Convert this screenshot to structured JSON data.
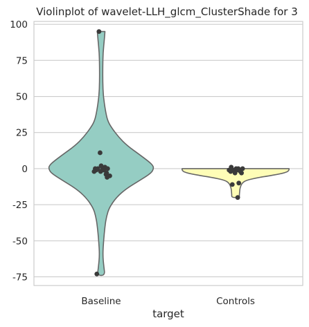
{
  "chart_data": {
    "type": "violin",
    "title": "Violinplot of wavelet-LLH_glcm_ClusterShade for 3",
    "xlabel": "target",
    "ylabel": "",
    "categories": [
      "Baseline",
      "Controls"
    ],
    "ylim": [
      -81,
      102
    ],
    "yticks": [
      100,
      75,
      50,
      25,
      0,
      -25,
      -50,
      -75
    ],
    "grid": "horizontal",
    "colors": {
      "Baseline": "#95cdc3",
      "Controls": "#fefdb7",
      "outline": "#666666",
      "points": "#3a3a3a",
      "grid": "#cccccc"
    },
    "series": [
      {
        "category": "Baseline",
        "violin_profile": [
          [
            95,
            0.07
          ],
          [
            90,
            0.06
          ],
          [
            80,
            0.035
          ],
          [
            70,
            0.03
          ],
          [
            60,
            0.03
          ],
          [
            50,
            0.04
          ],
          [
            40,
            0.08
          ],
          [
            33,
            0.12
          ],
          [
            28,
            0.2
          ],
          [
            22,
            0.32
          ],
          [
            16,
            0.48
          ],
          [
            10,
            0.7
          ],
          [
            5,
            0.88
          ],
          [
            2,
            0.96
          ],
          [
            0,
            0.97
          ],
          [
            -3,
            0.93
          ],
          [
            -8,
            0.72
          ],
          [
            -14,
            0.46
          ],
          [
            -20,
            0.28
          ],
          [
            -27,
            0.15
          ],
          [
            -33,
            0.1
          ],
          [
            -40,
            0.07
          ],
          [
            -50,
            0.045
          ],
          [
            -60,
            0.03
          ],
          [
            -68,
            0.05
          ],
          [
            -74,
            0.07
          ]
        ],
        "points": [
          [
            95,
            -0.04
          ],
          [
            11,
            -0.02
          ],
          [
            2,
            0.0
          ],
          [
            1,
            0.07
          ],
          [
            0,
            -0.11
          ],
          [
            0,
            -0.06
          ],
          [
            0,
            0.03
          ],
          [
            0,
            0.12
          ],
          [
            -1,
            -0.09
          ],
          [
            -1,
            0.05
          ],
          [
            -2,
            -0.01
          ],
          [
            -2,
            -0.13
          ],
          [
            -3,
            0.1
          ],
          [
            -4,
            0.09
          ],
          [
            -5,
            0.13
          ],
          [
            -5,
            0.16
          ],
          [
            -6,
            0.11
          ],
          [
            -73,
            -0.08
          ]
        ]
      },
      {
        "category": "Controls",
        "violin_profile": [
          [
            0,
            0.99
          ],
          [
            -1,
            0.99
          ],
          [
            -2.5,
            0.95
          ],
          [
            -4,
            0.78
          ],
          [
            -6,
            0.45
          ],
          [
            -8,
            0.2
          ],
          [
            -10,
            0.12
          ],
          [
            -13,
            0.085
          ],
          [
            -16,
            0.075
          ],
          [
            -18,
            0.07
          ],
          [
            -20,
            0.07
          ]
        ],
        "points": [
          [
            1,
            -0.08
          ],
          [
            0,
            0.01
          ],
          [
            0,
            0.05
          ],
          [
            0,
            0.13
          ],
          [
            -1,
            -0.12
          ],
          [
            -1,
            -0.05
          ],
          [
            -1,
            -0.02
          ],
          [
            -1,
            0.03
          ],
          [
            -2,
            -0.09
          ],
          [
            -2,
            0.09
          ],
          [
            -3,
            -0.01
          ],
          [
            -3,
            0.11
          ],
          [
            -10,
            0.06
          ],
          [
            -11,
            -0.06
          ],
          [
            -20,
            0.04
          ]
        ]
      }
    ]
  }
}
